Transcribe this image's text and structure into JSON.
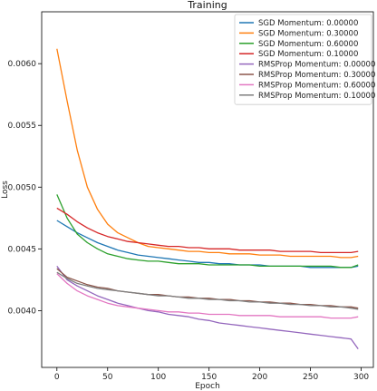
{
  "chart_data": {
    "type": "line",
    "title": "Training",
    "xlabel": "Epoch",
    "ylabel": "Loss",
    "xlim": [
      -15,
      312
    ],
    "ylim": [
      0.00354,
      0.00642
    ],
    "xticks": [
      0,
      50,
      100,
      150,
      200,
      250,
      300
    ],
    "xtick_labels": [
      "0",
      "50",
      "100",
      "150",
      "200",
      "250",
      "300"
    ],
    "yticks": [
      0.004,
      0.0045,
      0.005,
      0.0055,
      0.006
    ],
    "ytick_labels": [
      "0.0040",
      "0.0045",
      "0.0050",
      "0.0055",
      "0.0060"
    ],
    "grid": false,
    "legend_position": "top-right",
    "x": [
      0,
      10,
      20,
      30,
      40,
      50,
      60,
      70,
      80,
      90,
      100,
      110,
      120,
      130,
      140,
      150,
      160,
      170,
      180,
      190,
      200,
      210,
      220,
      230,
      240,
      250,
      260,
      270,
      280,
      290,
      297
    ],
    "series": [
      {
        "name": "SGD Momentum: 0.00000",
        "color": "#1f77b4",
        "values": [
          0.00473,
          0.00468,
          0.00463,
          0.00459,
          0.00455,
          0.00452,
          0.00449,
          0.00447,
          0.00445,
          0.00444,
          0.00443,
          0.00442,
          0.00441,
          0.0044,
          0.00439,
          0.00439,
          0.00438,
          0.00438,
          0.00437,
          0.00437,
          0.00437,
          0.00436,
          0.00436,
          0.00436,
          0.00436,
          0.00435,
          0.00435,
          0.00435,
          0.00435,
          0.00435,
          0.00436
        ]
      },
      {
        "name": "SGD Momentum: 0.30000",
        "color": "#ff7f0e",
        "values": [
          0.00612,
          0.0057,
          0.0053,
          0.005,
          0.00482,
          0.0047,
          0.00463,
          0.00459,
          0.00455,
          0.00452,
          0.00451,
          0.0045,
          0.00449,
          0.00448,
          0.00448,
          0.00447,
          0.00447,
          0.00446,
          0.00446,
          0.00446,
          0.00445,
          0.00445,
          0.00445,
          0.00444,
          0.00444,
          0.00444,
          0.00444,
          0.00444,
          0.00443,
          0.00443,
          0.00444
        ]
      },
      {
        "name": "SGD Momentum: 0.60000",
        "color": "#2ca02c",
        "values": [
          0.00494,
          0.00475,
          0.00462,
          0.00455,
          0.0045,
          0.00446,
          0.00444,
          0.00442,
          0.00441,
          0.0044,
          0.0044,
          0.00439,
          0.00438,
          0.00438,
          0.00438,
          0.00437,
          0.00437,
          0.00437,
          0.00437,
          0.00437,
          0.00436,
          0.00436,
          0.00436,
          0.00436,
          0.00436,
          0.00436,
          0.00436,
          0.00436,
          0.00435,
          0.00435,
          0.00437
        ]
      },
      {
        "name": "SGD Momentum: 0.10000",
        "color": "#d62728",
        "values": [
          0.00483,
          0.00478,
          0.00472,
          0.00467,
          0.00463,
          0.0046,
          0.00458,
          0.00456,
          0.00455,
          0.00454,
          0.00453,
          0.00452,
          0.00452,
          0.00451,
          0.00451,
          0.0045,
          0.0045,
          0.0045,
          0.00449,
          0.00449,
          0.00449,
          0.00449,
          0.00448,
          0.00448,
          0.00448,
          0.00448,
          0.00447,
          0.00447,
          0.00447,
          0.00447,
          0.00448
        ]
      },
      {
        "name": "RMSProp Momentum: 0.00000",
        "color": "#9467bd",
        "values": [
          0.00436,
          0.00425,
          0.0042,
          0.00416,
          0.00412,
          0.00409,
          0.00406,
          0.00404,
          0.00402,
          0.004,
          0.00399,
          0.00397,
          0.00396,
          0.00395,
          0.00393,
          0.00392,
          0.0039,
          0.00389,
          0.00388,
          0.00387,
          0.00386,
          0.00385,
          0.00384,
          0.00383,
          0.00382,
          0.00381,
          0.0038,
          0.00379,
          0.00378,
          0.00377,
          0.00369
        ]
      },
      {
        "name": "RMSProp Momentum: 0.30000",
        "color": "#8c564b",
        "values": [
          0.00434,
          0.00427,
          0.00424,
          0.00421,
          0.00419,
          0.00418,
          0.00416,
          0.00415,
          0.00414,
          0.00413,
          0.00413,
          0.00412,
          0.00411,
          0.00411,
          0.0041,
          0.0041,
          0.00409,
          0.00409,
          0.00408,
          0.00408,
          0.00407,
          0.00407,
          0.00406,
          0.00406,
          0.00405,
          0.00405,
          0.00404,
          0.00404,
          0.00403,
          0.00403,
          0.00402
        ]
      },
      {
        "name": "RMSProp Momentum: 0.60000",
        "color": "#e377c2",
        "values": [
          0.0043,
          0.00422,
          0.00416,
          0.00412,
          0.00409,
          0.00406,
          0.00404,
          0.00403,
          0.00402,
          0.00401,
          0.004,
          0.00399,
          0.00399,
          0.00398,
          0.00398,
          0.00397,
          0.00397,
          0.00397,
          0.00396,
          0.00396,
          0.00396,
          0.00396,
          0.00395,
          0.00395,
          0.00395,
          0.00395,
          0.00395,
          0.00394,
          0.00394,
          0.00394,
          0.00395
        ]
      },
      {
        "name": "RMSProp Momentum: 0.10000",
        "color": "#7f7f7f",
        "values": [
          0.00431,
          0.00426,
          0.00422,
          0.0042,
          0.00418,
          0.00417,
          0.00416,
          0.00415,
          0.00414,
          0.00413,
          0.00412,
          0.00412,
          0.00411,
          0.0041,
          0.0041,
          0.00409,
          0.00409,
          0.00408,
          0.00408,
          0.00407,
          0.00407,
          0.00406,
          0.00406,
          0.00405,
          0.00405,
          0.00404,
          0.00404,
          0.00403,
          0.00403,
          0.00402,
          0.00401
        ]
      }
    ]
  }
}
